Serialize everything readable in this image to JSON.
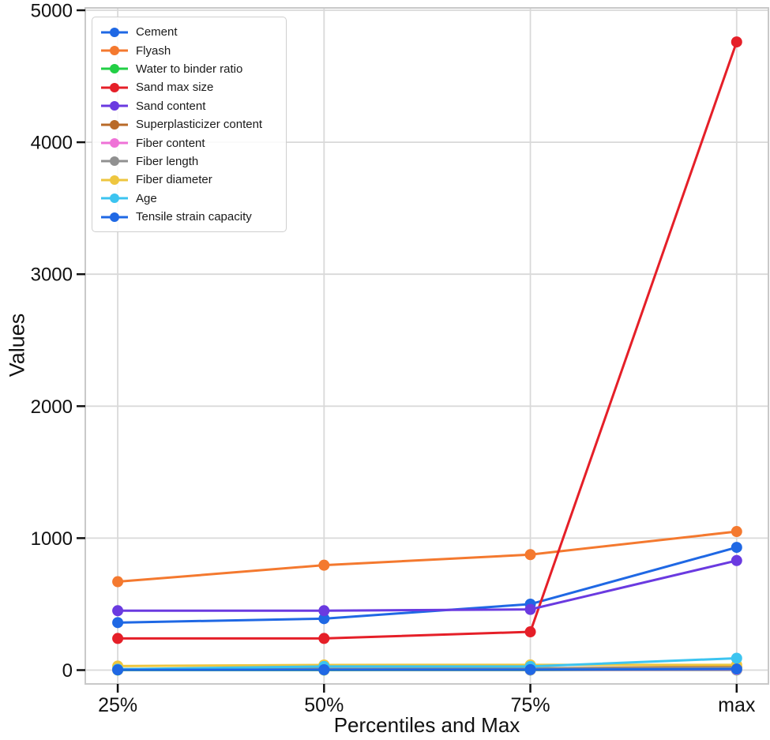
{
  "figure": {
    "background": "#ffffff",
    "text_color": "#111111",
    "gridline_color": "#d9d9d9",
    "border_color": "#c9c9c9"
  },
  "chart_data": {
    "type": "line",
    "title": "",
    "xlabel": "Percentiles and Max",
    "ylabel": "Values",
    "categories": [
      "25%",
      "50%",
      "75%",
      "max"
    ],
    "yticks": [
      0,
      1000,
      2000,
      3000,
      4000,
      5000
    ],
    "ylim": [
      0,
      5000
    ],
    "grid": true,
    "legend_position": "upper-left",
    "marker": "circle",
    "series": [
      {
        "name": "Cement",
        "color": "#1f68e4",
        "values": [
          360,
          390,
          500,
          930
        ]
      },
      {
        "name": "Flyash",
        "color": "#f4792f",
        "values": [
          670,
          795,
          875,
          1050
        ]
      },
      {
        "name": "Water to binder ratio",
        "color": "#22cf45",
        "values": [
          0.3,
          0.3,
          0.3,
          0.6
        ]
      },
      {
        "name": "Sand max size",
        "color": "#e51f28",
        "values": [
          240,
          240,
          290,
          4760
        ]
      },
      {
        "name": "Sand content",
        "color": "#6a3ae0",
        "values": [
          450,
          450,
          460,
          830
        ]
      },
      {
        "name": "Superplasticizer content",
        "color": "#b96a28",
        "values": [
          5,
          9,
          13,
          25
        ]
      },
      {
        "name": "Fiber content",
        "color": "#ef72d7",
        "values": [
          2,
          2,
          2,
          3
        ]
      },
      {
        "name": "Fiber length",
        "color": "#909090",
        "values": [
          8,
          8,
          12,
          18
        ]
      },
      {
        "name": "Fiber diameter",
        "color": "#eec63f",
        "values": [
          31,
          39,
          40,
          40
        ]
      },
      {
        "name": "Age",
        "color": "#3cc4f0",
        "values": [
          7,
          28,
          28,
          90
        ]
      },
      {
        "name": "Tensile strain capacity",
        "color": "#1f68e4",
        "values": [
          2,
          3,
          4,
          8
        ]
      }
    ]
  }
}
